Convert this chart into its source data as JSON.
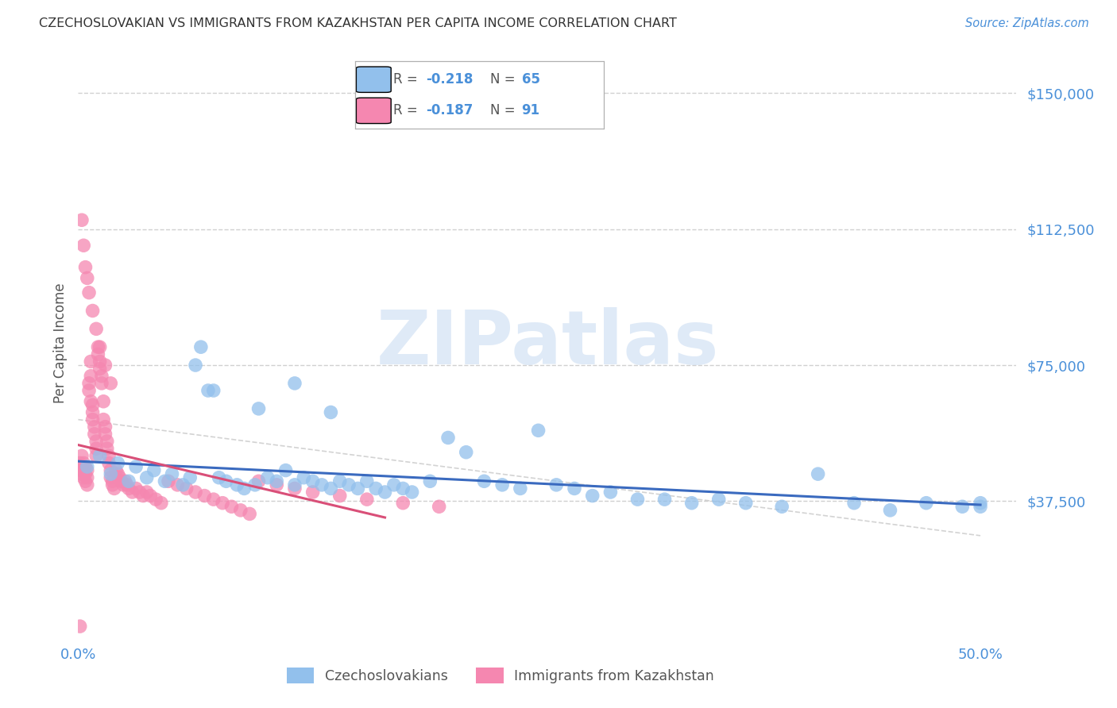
{
  "title": "CZECHOSLOVAKIAN VS IMMIGRANTS FROM KAZAKHSTAN PER CAPITA INCOME CORRELATION CHART",
  "source": "Source: ZipAtlas.com",
  "ylabel": "Per Capita Income",
  "ylim": [
    0,
    162000
  ],
  "xlim": [
    0.0,
    0.52
  ],
  "watermark_text": "ZIPatlas",
  "blue_label": "Czechoslovakians",
  "pink_label": "Immigrants from Kazakhstan",
  "blue_color": "#92c0ec",
  "pink_color": "#f587b0",
  "trendline_blue_color": "#3a6abf",
  "trendline_pink_color": "#d94f78",
  "trendline_gray_color": "#c8c8c8",
  "title_color": "#333333",
  "axis_label_color": "#555555",
  "tick_color": "#4a90d9",
  "grid_color": "#d0d0d0",
  "legend_r_blue": "R = -0.218",
  "legend_n_blue": "N = 65",
  "legend_r_pink": "R = -0.187",
  "legend_n_pink": "N = 91",
  "ytick_vals": [
    37500,
    75000,
    112500,
    150000
  ],
  "ytick_labels": [
    "$37,500",
    "$75,000",
    "$112,500",
    "$150,000"
  ],
  "blue_scatter_x": [
    0.005,
    0.012,
    0.018,
    0.022,
    0.028,
    0.032,
    0.038,
    0.042,
    0.048,
    0.052,
    0.058,
    0.062,
    0.068,
    0.072,
    0.078,
    0.082,
    0.088,
    0.092,
    0.098,
    0.105,
    0.11,
    0.115,
    0.12,
    0.125,
    0.13,
    0.135,
    0.14,
    0.145,
    0.15,
    0.155,
    0.16,
    0.165,
    0.17,
    0.175,
    0.18,
    0.185,
    0.195,
    0.205,
    0.215,
    0.225,
    0.235,
    0.245,
    0.255,
    0.265,
    0.275,
    0.285,
    0.295,
    0.31,
    0.325,
    0.34,
    0.355,
    0.37,
    0.39,
    0.41,
    0.43,
    0.45,
    0.47,
    0.49,
    0.5,
    0.5,
    0.1,
    0.12,
    0.14,
    0.065,
    0.075
  ],
  "blue_scatter_y": [
    47000,
    50000,
    45000,
    48000,
    43000,
    47000,
    44000,
    46000,
    43000,
    45000,
    42000,
    44000,
    80000,
    68000,
    44000,
    43000,
    42000,
    41000,
    42000,
    44000,
    43000,
    46000,
    42000,
    44000,
    43000,
    42000,
    41000,
    43000,
    42000,
    41000,
    43000,
    41000,
    40000,
    42000,
    41000,
    40000,
    43000,
    55000,
    51000,
    43000,
    42000,
    41000,
    57000,
    42000,
    41000,
    39000,
    40000,
    38000,
    38000,
    37000,
    38000,
    37000,
    36000,
    45000,
    37000,
    35000,
    37000,
    36000,
    37000,
    36000,
    63000,
    70000,
    62000,
    75000,
    68000
  ],
  "pink_scatter_x": [
    0.001,
    0.001,
    0.002,
    0.002,
    0.002,
    0.003,
    0.003,
    0.003,
    0.004,
    0.004,
    0.004,
    0.005,
    0.005,
    0.005,
    0.006,
    0.006,
    0.007,
    0.007,
    0.007,
    0.008,
    0.008,
    0.008,
    0.009,
    0.009,
    0.01,
    0.01,
    0.01,
    0.011,
    0.011,
    0.012,
    0.012,
    0.013,
    0.013,
    0.014,
    0.014,
    0.015,
    0.015,
    0.016,
    0.016,
    0.017,
    0.017,
    0.018,
    0.018,
    0.019,
    0.019,
    0.02,
    0.021,
    0.022,
    0.023,
    0.024,
    0.025,
    0.026,
    0.027,
    0.028,
    0.03,
    0.032,
    0.034,
    0.036,
    0.038,
    0.04,
    0.043,
    0.046,
    0.05,
    0.055,
    0.06,
    0.065,
    0.07,
    0.075,
    0.08,
    0.085,
    0.09,
    0.095,
    0.1,
    0.11,
    0.12,
    0.13,
    0.145,
    0.16,
    0.18,
    0.2,
    0.002,
    0.003,
    0.004,
    0.005,
    0.006,
    0.008,
    0.01,
    0.012,
    0.015,
    0.018,
    0.001
  ],
  "pink_scatter_y": [
    48000,
    46000,
    50000,
    47000,
    45000,
    48000,
    46000,
    44000,
    47000,
    45000,
    43000,
    46000,
    44000,
    42000,
    70000,
    68000,
    76000,
    72000,
    65000,
    64000,
    62000,
    60000,
    58000,
    56000,
    54000,
    52000,
    50000,
    80000,
    78000,
    76000,
    74000,
    72000,
    70000,
    65000,
    60000,
    58000,
    56000,
    54000,
    52000,
    50000,
    48000,
    46000,
    44000,
    43000,
    42000,
    41000,
    46000,
    45000,
    44000,
    43000,
    42000,
    43000,
    42000,
    41000,
    40000,
    41000,
    40000,
    39000,
    40000,
    39000,
    38000,
    37000,
    43000,
    42000,
    41000,
    40000,
    39000,
    38000,
    37000,
    36000,
    35000,
    34000,
    43000,
    42000,
    41000,
    40000,
    39000,
    38000,
    37000,
    36000,
    115000,
    108000,
    102000,
    99000,
    95000,
    90000,
    85000,
    80000,
    75000,
    70000,
    3000
  ]
}
